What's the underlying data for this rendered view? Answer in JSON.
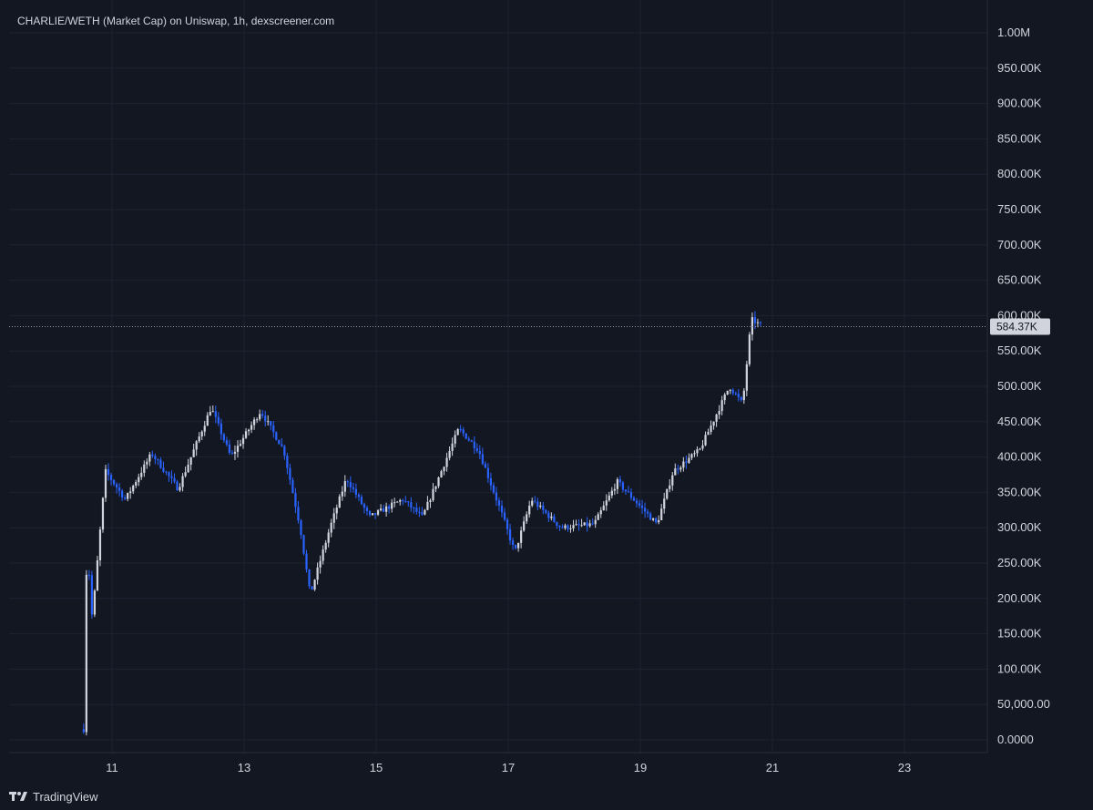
{
  "header": {
    "title": "CHARLIE/WETH (Market Cap) on Uniswap, 1h, dexscreener.com"
  },
  "footer": {
    "brand": "TradingView",
    "logo_icon": "tradingview-logo-icon"
  },
  "colors": {
    "background": "#131722",
    "up": "#d1d4dc",
    "down": "#2962ff",
    "grid": "#1e2333",
    "text": "#d1d4dc"
  },
  "chart_data": {
    "type": "candlestick",
    "title": "CHARLIE/WETH (Market Cap) on Uniswap, 1h, dexscreener.com",
    "interval": "1h",
    "y_ticks": [
      {
        "value": 0,
        "label": "0.0000"
      },
      {
        "value": 50000,
        "label": "50,000.00"
      },
      {
        "value": 100000,
        "label": "100.00K"
      },
      {
        "value": 150000,
        "label": "150.00K"
      },
      {
        "value": 200000,
        "label": "200.00K"
      },
      {
        "value": 250000,
        "label": "250.00K"
      },
      {
        "value": 300000,
        "label": "300.00K"
      },
      {
        "value": 350000,
        "label": "350.00K"
      },
      {
        "value": 400000,
        "label": "400.00K"
      },
      {
        "value": 450000,
        "label": "450.00K"
      },
      {
        "value": 500000,
        "label": "500.00K"
      },
      {
        "value": 550000,
        "label": "550.00K"
      },
      {
        "value": 600000,
        "label": "600.00K"
      },
      {
        "value": 650000,
        "label": "650.00K"
      },
      {
        "value": 700000,
        "label": "700.00K"
      },
      {
        "value": 750000,
        "label": "750.00K"
      },
      {
        "value": 800000,
        "label": "800.00K"
      },
      {
        "value": 850000,
        "label": "850.00K"
      },
      {
        "value": 900000,
        "label": "900.00K"
      },
      {
        "value": 950000,
        "label": "950.00K"
      },
      {
        "value": 1000000,
        "label": "1.00M"
      }
    ],
    "x_ticks": [
      {
        "day": 11,
        "label": "11"
      },
      {
        "day": 13,
        "label": "13"
      },
      {
        "day": 15,
        "label": "15"
      },
      {
        "day": 17,
        "label": "17"
      },
      {
        "day": 19,
        "label": "19"
      },
      {
        "day": 21,
        "label": "21"
      },
      {
        "day": 23,
        "label": "23"
      }
    ],
    "ylim": [
      0,
      1000000
    ],
    "last_price": {
      "value": 584370,
      "label": "584.37K"
    },
    "key_points": [
      {
        "day": 10.57,
        "value": 15000
      },
      {
        "day": 10.62,
        "value": 280000
      },
      {
        "day": 10.7,
        "value": 170000
      },
      {
        "day": 10.9,
        "value": 380000
      },
      {
        "day": 11.2,
        "value": 340000
      },
      {
        "day": 11.6,
        "value": 405000
      },
      {
        "day": 12.0,
        "value": 355000
      },
      {
        "day": 12.5,
        "value": 470000
      },
      {
        "day": 12.8,
        "value": 400000
      },
      {
        "day": 13.25,
        "value": 465000
      },
      {
        "day": 13.6,
        "value": 410000
      },
      {
        "day": 13.85,
        "value": 300000
      },
      {
        "day": 14.0,
        "value": 205000
      },
      {
        "day": 14.3,
        "value": 300000
      },
      {
        "day": 14.55,
        "value": 370000
      },
      {
        "day": 14.9,
        "value": 315000
      },
      {
        "day": 15.4,
        "value": 340000
      },
      {
        "day": 15.7,
        "value": 315000
      },
      {
        "day": 16.25,
        "value": 440000
      },
      {
        "day": 16.55,
        "value": 410000
      },
      {
        "day": 16.9,
        "value": 320000
      },
      {
        "day": 17.1,
        "value": 265000
      },
      {
        "day": 17.35,
        "value": 340000
      },
      {
        "day": 17.8,
        "value": 300000
      },
      {
        "day": 18.3,
        "value": 305000
      },
      {
        "day": 18.65,
        "value": 365000
      },
      {
        "day": 18.9,
        "value": 340000
      },
      {
        "day": 19.25,
        "value": 305000
      },
      {
        "day": 19.5,
        "value": 380000
      },
      {
        "day": 19.9,
        "value": 410000
      },
      {
        "day": 20.35,
        "value": 500000
      },
      {
        "day": 20.55,
        "value": 475000
      },
      {
        "day": 20.68,
        "value": 595000
      },
      {
        "day": 20.85,
        "value": 584370
      }
    ]
  }
}
